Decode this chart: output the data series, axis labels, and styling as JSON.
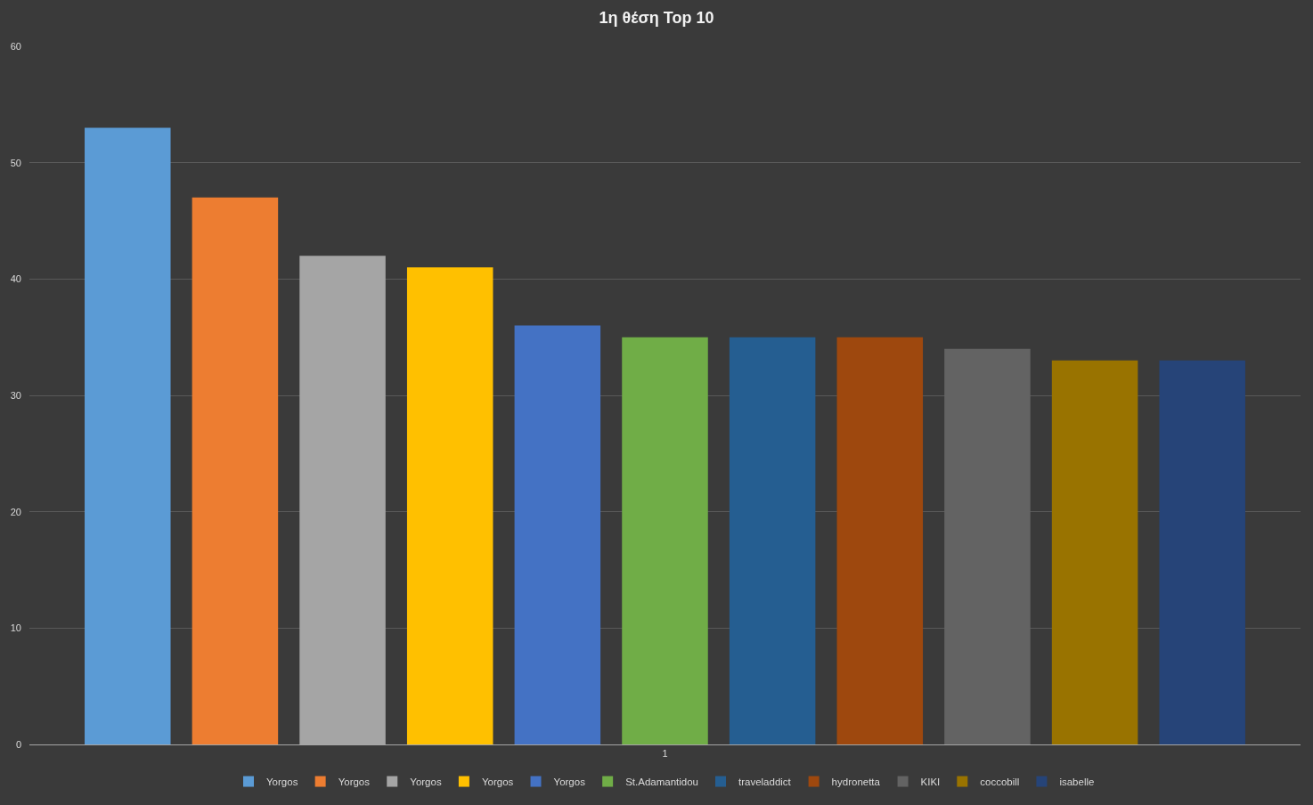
{
  "chart_data": {
    "type": "bar",
    "title": "1η θέση Top 10",
    "categories": [
      "1"
    ],
    "series": [
      {
        "name": "Yorgos",
        "color": "#5b9bd5",
        "values": [
          53
        ]
      },
      {
        "name": "Yorgos",
        "color": "#ed7d31",
        "values": [
          47
        ]
      },
      {
        "name": "Yorgos",
        "color": "#a5a5a5",
        "values": [
          42
        ]
      },
      {
        "name": "Yorgos",
        "color": "#ffc000",
        "values": [
          41
        ]
      },
      {
        "name": "Yorgos",
        "color": "#4472c4",
        "values": [
          36
        ]
      },
      {
        "name": "St.Adamantidou",
        "color": "#70ad47",
        "values": [
          35
        ]
      },
      {
        "name": "traveladdict",
        "color": "#255e91",
        "values": [
          35
        ]
      },
      {
        "name": "hydronetta",
        "color": "#9e480e",
        "values": [
          35
        ]
      },
      {
        "name": "KIKI",
        "color": "#636363",
        "values": [
          34
        ]
      },
      {
        "name": "coccobill",
        "color": "#997300",
        "values": [
          33
        ]
      },
      {
        "name": "isabelle",
        "color": "#264478",
        "values": [
          33
        ]
      }
    ],
    "ylim": [
      0,
      60
    ],
    "yticks": [
      0,
      10,
      20,
      30,
      40,
      50,
      60
    ],
    "grid": "y",
    "legend": "bottom"
  }
}
